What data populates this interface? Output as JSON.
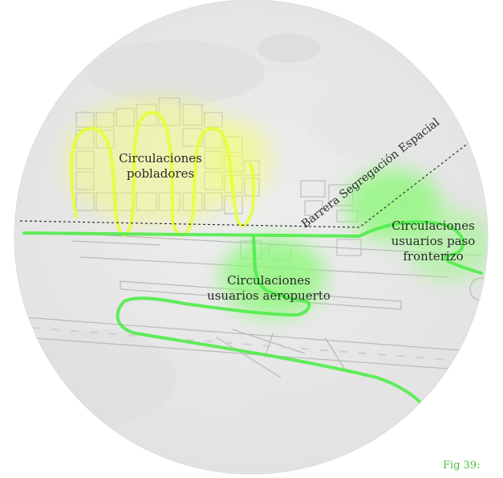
{
  "labels": {
    "pobladores": [
      "Circulaciones",
      "pobladores"
    ],
    "aeropuerto": [
      "Circulaciones",
      "usuarios aeropuerto"
    ],
    "paso_fronterizo": [
      "Circulaciones",
      "usuarios paso",
      "fronterizo"
    ],
    "barrera": "Barrera Segregación Espacial"
  },
  "caption": "Fig 39:",
  "colors": {
    "town_circulation": "#e6ff2e",
    "airport_circulation": "#66f04f",
    "border_circulation": "#66f04f",
    "barrier_line": "#333333",
    "caption": "#4dbd45"
  }
}
